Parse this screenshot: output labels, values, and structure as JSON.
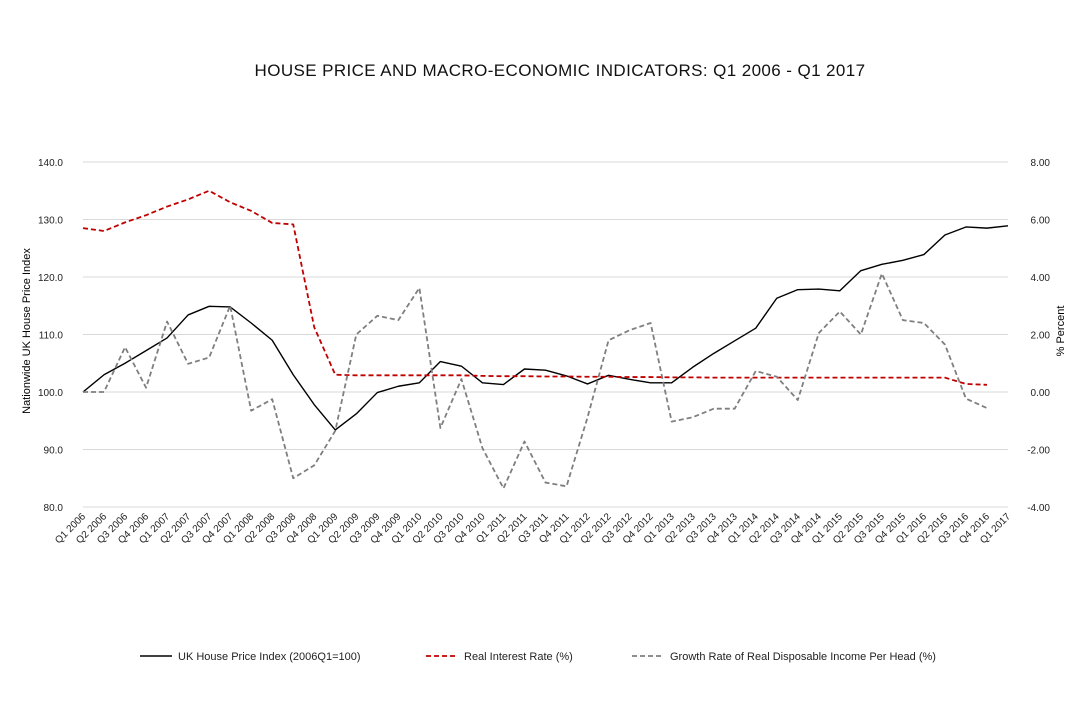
{
  "chart_data": {
    "type": "line",
    "title": "HOUSE PRICE AND MACRO-ECONOMIC INDICATORS: Q1 2006 - Q1 2017",
    "ylabel": "Nationwide UK House Price Index",
    "y2label": "% Percent",
    "ylim": [
      80,
      140
    ],
    "y2lim": [
      -4,
      8
    ],
    "yticks": [
      "80.0",
      "90.0",
      "100.0",
      "110.0",
      "120.0",
      "130.0",
      "140.0"
    ],
    "y2ticks": [
      "-4.00",
      "-2.00",
      "0.00",
      "2.00",
      "4.00",
      "6.00",
      "8.00"
    ],
    "grid": true,
    "legend_position": "bottom",
    "categories": [
      "Q1 2006",
      "Q2 2006",
      "Q3 2006",
      "Q4 2006",
      "Q1 2007",
      "Q2 2007",
      "Q3 2007",
      "Q4 2007",
      "Q1 2008",
      "Q2 2008",
      "Q3 2008",
      "Q4 2008",
      "Q1 2009",
      "Q2 2009",
      "Q3 2009",
      "Q4 2009",
      "Q1 2010",
      "Q2 2010",
      "Q3 2010",
      "Q4 2010",
      "Q1 2011",
      "Q2 2011",
      "Q3 2011",
      "Q4 2011",
      "Q1 2012",
      "Q2 2012",
      "Q3 2012",
      "Q4 2012",
      "Q1 2013",
      "Q2 2013",
      "Q3 2013",
      "Q4 2013",
      "Q1 2014",
      "Q2 2014",
      "Q3 2014",
      "Q4 2014",
      "Q1 2015",
      "Q2 2015",
      "Q3 2015",
      "Q4 2015",
      "Q1 2016",
      "Q2 2016",
      "Q3 2016",
      "Q4 2016",
      "Q1 2017"
    ],
    "series": [
      {
        "name": "UK House Price Index (2006Q1=100)",
        "axis": "left",
        "color": "#000000",
        "dash": "solid",
        "values": [
          100.0,
          103.0,
          105.0,
          107.2,
          109.4,
          113.4,
          114.9,
          114.8,
          112.0,
          109.0,
          103.0,
          97.8,
          93.4,
          96.2,
          99.9,
          101.0,
          101.6,
          105.3,
          104.5,
          101.6,
          101.3,
          104.0,
          103.8,
          102.8,
          101.4,
          102.9,
          102.2,
          101.6,
          101.6,
          104.3,
          106.7,
          108.9,
          111.1,
          116.3,
          117.8,
          117.9,
          117.6,
          121.1,
          122.2,
          122.9,
          123.9,
          127.3,
          128.7,
          128.5,
          128.9
        ]
      },
      {
        "name": "Real Interest Rate (%)",
        "axis": "right",
        "color": "#c00000",
        "dash": "dashed",
        "values": [
          5.7,
          5.6,
          5.9,
          6.15,
          6.45,
          6.7,
          7.0,
          6.6,
          6.3,
          5.88,
          5.83,
          2.25,
          0.6,
          0.58,
          0.58,
          0.58,
          0.58,
          0.58,
          0.58,
          0.56,
          0.55,
          0.55,
          0.54,
          0.54,
          0.53,
          0.53,
          0.52,
          0.52,
          0.51,
          0.51,
          0.5,
          0.5,
          0.5,
          0.5,
          0.5,
          0.5,
          0.5,
          0.5,
          0.5,
          0.5,
          0.5,
          0.5,
          0.28,
          0.25,
          null
        ]
      },
      {
        "name": "Growth Rate of Real Disposable Income Per Head (%)",
        "axis": "right",
        "color": "#7f7f7f",
        "dash": "dashed",
        "values": [
          0.0,
          0.0,
          1.56,
          0.15,
          2.45,
          0.98,
          1.2,
          3.0,
          -0.65,
          -0.25,
          -3.0,
          -2.55,
          -1.35,
          2.0,
          2.65,
          2.5,
          3.62,
          -1.25,
          0.45,
          -1.95,
          -3.35,
          -1.72,
          -3.15,
          -3.28,
          -0.88,
          1.8,
          2.15,
          2.4,
          -1.03,
          -0.88,
          -0.58,
          -0.58,
          0.73,
          0.53,
          -0.28,
          2.05,
          2.8,
          2.0,
          4.12,
          2.5,
          2.4,
          1.65,
          -0.23,
          -0.56,
          null
        ]
      }
    ]
  }
}
